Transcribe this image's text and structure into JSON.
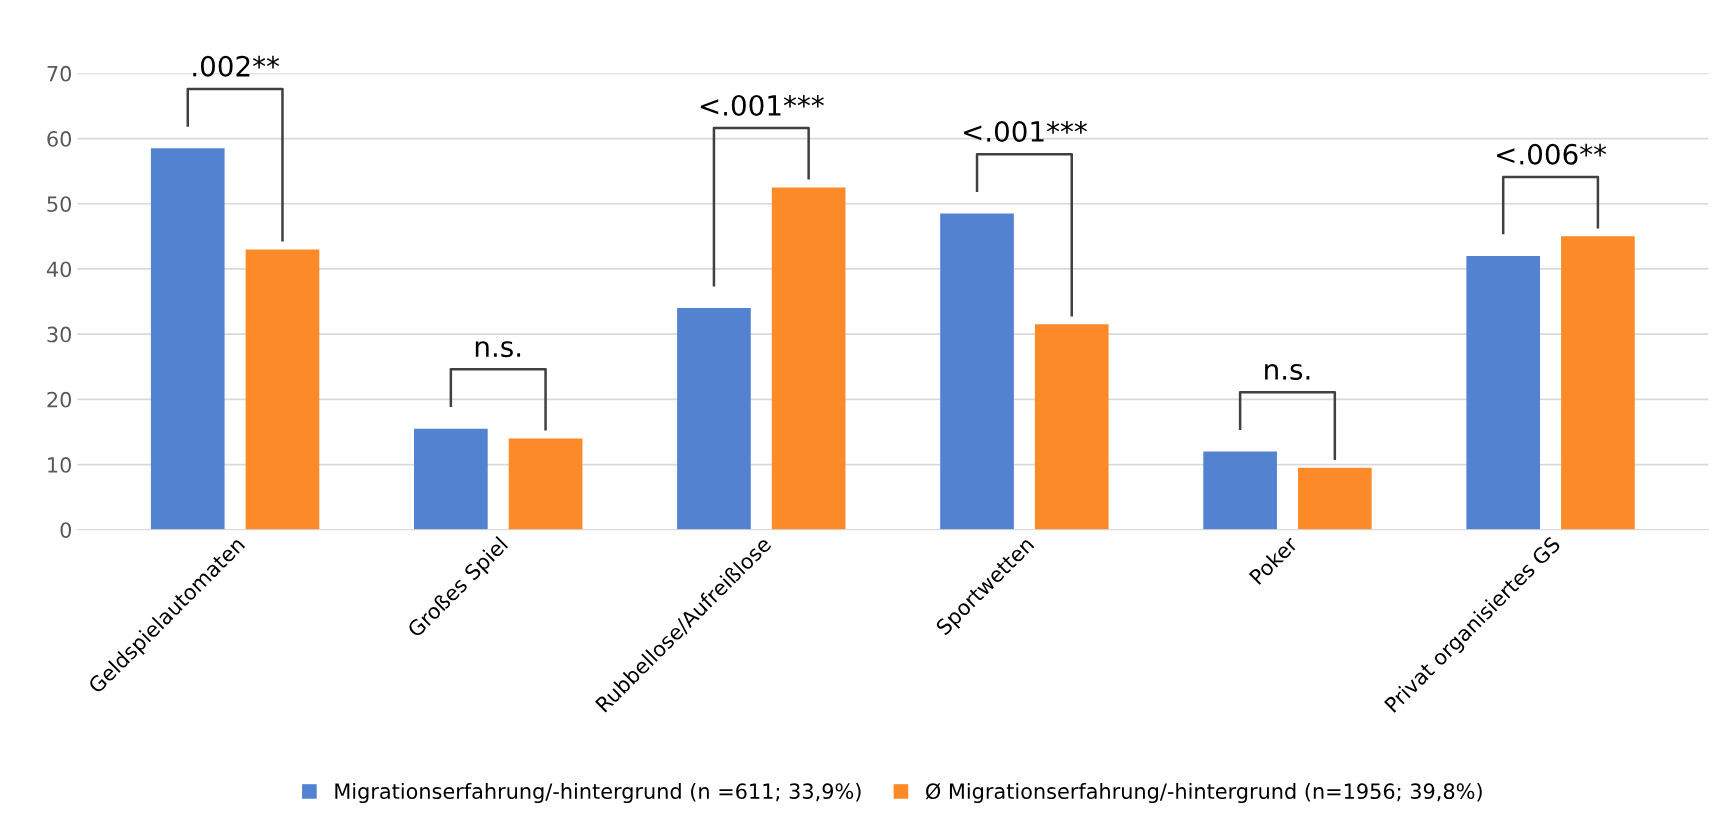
{
  "chart_data": {
    "type": "bar",
    "categories": [
      "Geldspielautomaten",
      "Großes Spiel",
      "Rubbellose/Aufreißlose",
      "Sportwetten",
      "Poker",
      "Privat organisiertes GS"
    ],
    "series": [
      {
        "name": "Migrationserfahrung/-hintergrund (n =611; 33,9%)",
        "color": "#5282d0",
        "values": [
          58.5,
          15.5,
          34,
          48.5,
          12,
          42
        ]
      },
      {
        "name": "Ø Migrationserfahrung/-hintergrund (n=1956; 39,8%)",
        "color": "#fd8a28",
        "values": [
          43,
          14,
          52.5,
          31.5,
          9.5,
          45
        ]
      }
    ],
    "annotations": [
      ".002**",
      "n.s.",
      "<.001***",
      "<.001***",
      "n.s.",
      "<.006**"
    ],
    "ylim": [
      0,
      70
    ],
    "yticks": [
      0,
      10,
      20,
      30,
      40,
      50,
      60,
      70
    ],
    "grid": "y",
    "legend": "bottom"
  }
}
